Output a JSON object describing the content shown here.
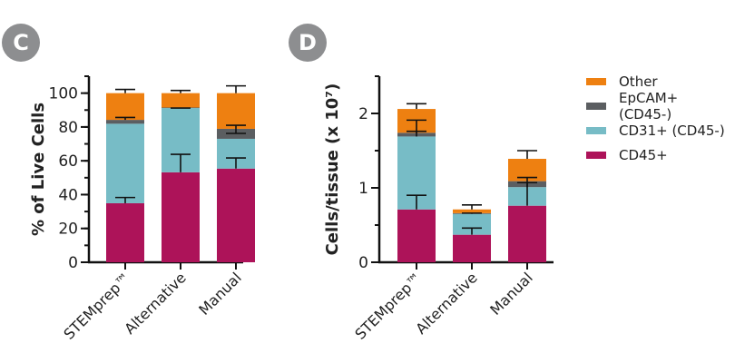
{
  "panels": {
    "c_label": "C",
    "d_label": "D"
  },
  "legend": [
    {
      "label": "Other",
      "color": "#ee8011"
    },
    {
      "label": "EpCAM+ (CD45-)",
      "color": "#5b5e61"
    },
    {
      "label": "CD31+ (CD45-)",
      "color": "#77bcc6"
    },
    {
      "label": "CD45+",
      "color": "#ad1359"
    }
  ],
  "chart_data": [
    {
      "type": "bar",
      "stacked": true,
      "panel": "C",
      "title": "",
      "xlabel": "",
      "ylabel": "% of Live Cells",
      "ylim": [
        0,
        110
      ],
      "yticks": [
        0,
        20,
        40,
        60,
        80,
        100
      ],
      "yticks_minor_step": 10,
      "categories": [
        "STEMprep™",
        "Alternative",
        "Manual"
      ],
      "series": [
        {
          "name": "CD45+",
          "values": [
            34.9,
            53.2,
            55.4
          ],
          "error_top": [
            38.3,
            63.8,
            61.7
          ]
        },
        {
          "name": "CD31+ (CD45-)",
          "values": [
            47.0,
            38.0,
            17.6
          ],
          "error_top": [
            null,
            null,
            null
          ]
        },
        {
          "name": "EpCAM+ (CD45-)",
          "values": [
            2.3,
            0.3,
            5.9
          ],
          "error_top": [
            85.6,
            91.2,
            81.0
          ],
          "error_bottom_mark": [
            null,
            null,
            76.2
          ]
        },
        {
          "name": "Other",
          "values": [
            15.8,
            8.5,
            21.1
          ],
          "error_top": [
            102.2,
            101.6,
            104.3
          ]
        }
      ]
    },
    {
      "type": "bar",
      "stacked": true,
      "panel": "D",
      "title": "",
      "xlabel": "",
      "ylabel": "Cells/tissue (x 10⁷)",
      "ylim": [
        0,
        2.5
      ],
      "yticks": [
        0,
        1,
        2
      ],
      "yticks_minor_step": 0.5,
      "categories": [
        "STEMprep™",
        "Alternative",
        "Manual"
      ],
      "series": [
        {
          "name": "CD45+",
          "values": [
            0.71,
            0.37,
            0.76
          ],
          "error_top": [
            0.9,
            0.46,
            1.07
          ]
        },
        {
          "name": "CD31+ (CD45-)",
          "values": [
            0.98,
            0.28,
            0.25
          ],
          "error_top": [
            1.76,
            0.66,
            1.14
          ]
        },
        {
          "name": "EpCAM+ (CD45-)",
          "values": [
            0.05,
            0.01,
            0.08
          ],
          "error_top": [
            1.91,
            null,
            null
          ]
        },
        {
          "name": "Other",
          "values": [
            0.32,
            0.05,
            0.3
          ],
          "error_top": [
            2.13,
            0.77,
            1.5
          ]
        }
      ]
    }
  ]
}
